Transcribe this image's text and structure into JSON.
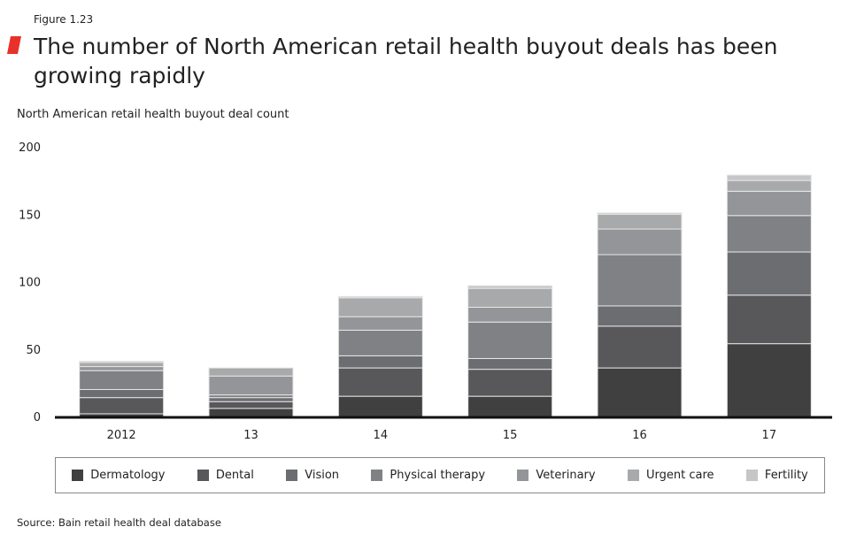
{
  "figure_label": "Figure 1.23",
  "title": "The number of North American retail health buyout deals has been growing rapidly",
  "source": "Source: Bain retail health deal database",
  "accent_color": "#e8312a",
  "chart_data": {
    "type": "bar",
    "stacked": true,
    "ylabel": "North American retail health buyout deal count",
    "ylim": [
      0,
      200
    ],
    "yticks": [
      0,
      50,
      100,
      150,
      200
    ],
    "categories": [
      "2012",
      "13",
      "14",
      "15",
      "16",
      "17"
    ],
    "legend_position": "bottom",
    "grid": false,
    "series": [
      {
        "name": "Dermatology",
        "color": "#404040",
        "values": [
          2,
          6,
          15,
          15,
          36,
          54
        ]
      },
      {
        "name": "Dental",
        "color": "#58585a",
        "values": [
          12,
          5,
          21,
          20,
          31,
          36
        ]
      },
      {
        "name": "Vision",
        "color": "#6c6d70",
        "values": [
          6,
          3,
          9,
          8,
          15,
          32
        ]
      },
      {
        "name": "Physical therapy",
        "color": "#808184",
        "values": [
          14,
          2,
          19,
          27,
          38,
          27
        ]
      },
      {
        "name": "Veterinary",
        "color": "#949598",
        "values": [
          3,
          14,
          10,
          11,
          19,
          18
        ]
      },
      {
        "name": "Urgent care",
        "color": "#a8a9ab",
        "values": [
          3,
          6,
          14,
          14,
          11,
          8
        ]
      },
      {
        "name": "Fertility",
        "color": "#c6c6c8",
        "values": [
          1,
          0,
          1,
          2,
          1,
          4
        ]
      }
    ]
  }
}
